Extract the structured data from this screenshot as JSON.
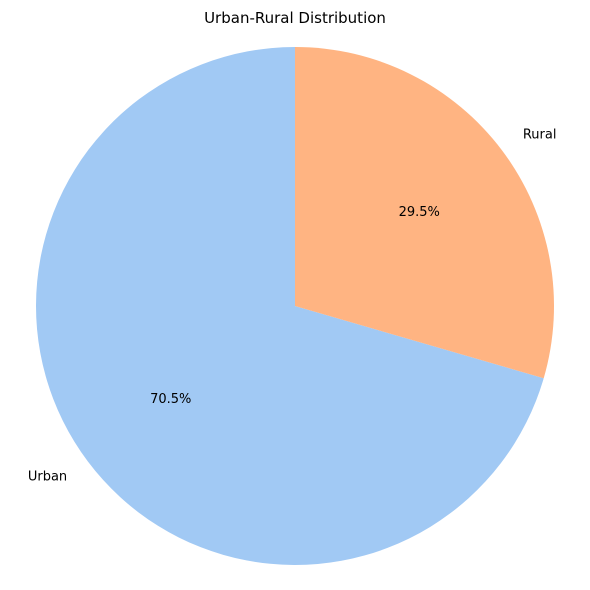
{
  "chart_data": {
    "type": "pie",
    "title": "Urban-Rural Distribution",
    "categories": [
      "Urban",
      "Rural"
    ],
    "values": [
      70.5,
      29.5
    ],
    "value_labels": [
      "70.5%",
      "29.5%"
    ],
    "colors": [
      "#a1c9f4",
      "#ffb482"
    ],
    "start_angle_deg": 90,
    "direction": "counterclockwise",
    "legend": "none"
  }
}
